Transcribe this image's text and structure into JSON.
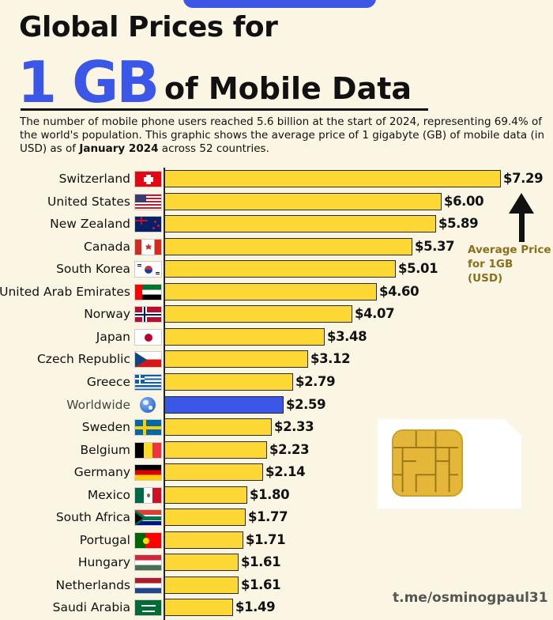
{
  "header": {
    "title_line1": "Global Prices for",
    "title_big": "1 GB",
    "title_rest": "of Mobile Data",
    "description_part1": "The number of mobile phone users reached 5.6 billion at the start of 2024, representing 69.4% of the world's population. This graphic shows the average price of 1 gigabyte (GB) of mobile data (in USD) as of ",
    "description_bold": "January 2024",
    "description_part2": " across 52 countries."
  },
  "annotation": {
    "line1": "Average Price",
    "line2": "for 1GB (USD)"
  },
  "watermark": "t.me/osminogpaul31",
  "colors": {
    "bar": "#fdd835",
    "highlight": "#3b57e8",
    "title_accent": "#3b57e8"
  },
  "chart_data": {
    "type": "bar",
    "orientation": "horizontal",
    "categories": [
      "Switzerland",
      "United States",
      "New Zealand",
      "Canada",
      "South Korea",
      "United Arab Emirates",
      "Norway",
      "Japan",
      "Czech Republic",
      "Greece",
      "Worldwide",
      "Sweden",
      "Belgium",
      "Germany",
      "Mexico",
      "South Africa",
      "Portugal",
      "Hungary",
      "Netherlands",
      "Saudi Arabia"
    ],
    "values": [
      7.29,
      6.0,
      5.89,
      5.37,
      5.01,
      4.6,
      4.07,
      3.48,
      3.12,
      2.79,
      2.59,
      2.33,
      2.23,
      2.14,
      1.8,
      1.77,
      1.71,
      1.61,
      1.61,
      1.49
    ],
    "value_labels": [
      "$7.29",
      "$6.00",
      "$5.89",
      "$5.37",
      "$5.01",
      "$4.60",
      "$4.07",
      "$3.48",
      "$3.12",
      "$2.79",
      "$2.59",
      "$2.33",
      "$2.23",
      "$2.14",
      "$1.80",
      "$1.77",
      "$1.71",
      "$1.61",
      "$1.61",
      "$1.49"
    ],
    "highlight": "Worldwide",
    "flag_icons": [
      "switzerland-flag-icon",
      "united-states-flag-icon",
      "new-zealand-flag-icon",
      "canada-flag-icon",
      "south-korea-flag-icon",
      "uae-flag-icon",
      "norway-flag-icon",
      "japan-flag-icon",
      "czech-flag-icon",
      "greece-flag-icon",
      "globe-icon",
      "sweden-flag-icon",
      "belgium-flag-icon",
      "germany-flag-icon",
      "mexico-flag-icon",
      "south-africa-flag-icon",
      "portugal-flag-icon",
      "hungary-flag-icon",
      "netherlands-flag-icon",
      "saudi-arabia-flag-icon"
    ],
    "xlim": [
      0,
      7.29
    ],
    "grid": false,
    "legend": "none"
  }
}
